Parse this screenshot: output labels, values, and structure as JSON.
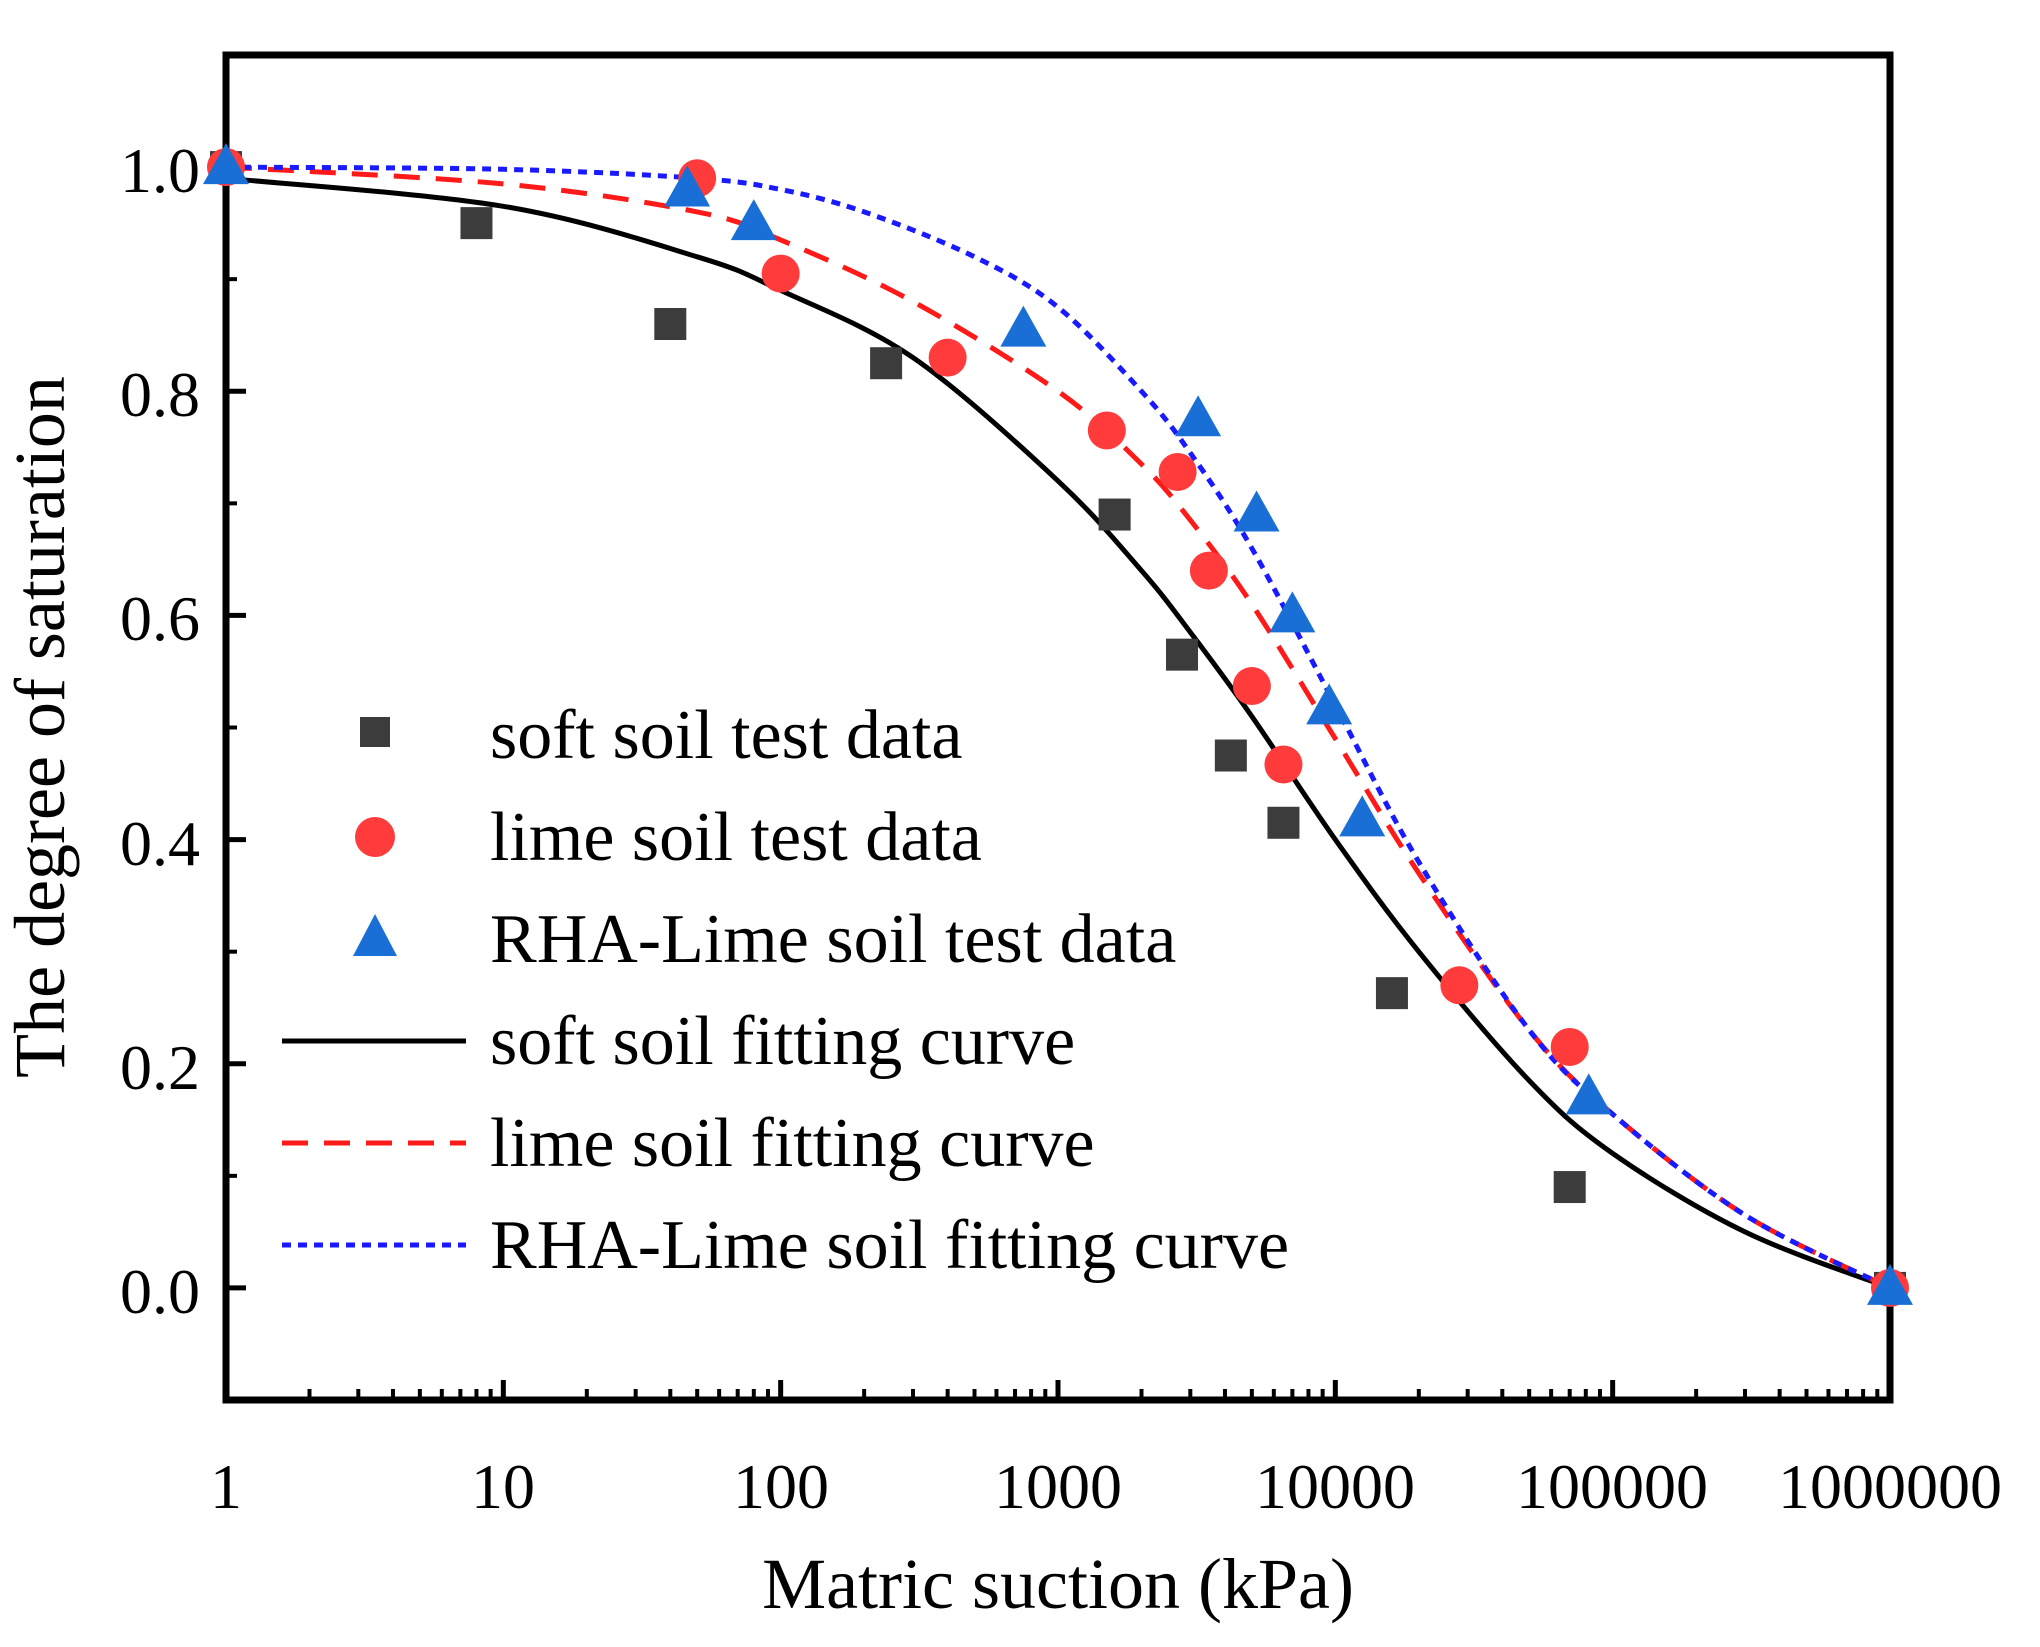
{
  "chart_data": {
    "type": "scatter",
    "title": "",
    "xlabel": "Matric suction (kPa)",
    "ylabel": "The degree of saturation",
    "xscale": "log",
    "xlim": [
      1,
      1000000
    ],
    "ylim": [
      -0.1,
      1.1
    ],
    "x_tick_labels": [
      "1",
      "10",
      "100",
      "1000",
      "10000",
      "100000",
      "1000000"
    ],
    "y_tick_labels": [
      "0.0",
      "0.2",
      "0.4",
      "0.6",
      "0.8",
      "1.0"
    ],
    "legend_position": "center-left",
    "colors": {
      "soft": "#3c3c3c",
      "lime": "#ff3b3b",
      "rha": "#1a6fd6",
      "soft_curve": "#000000",
      "lime_curve": "#ff1a1a",
      "rha_curve": "#1a1aff"
    },
    "series": [
      {
        "name": "soft soil test data",
        "kind": "markers",
        "marker": "square",
        "color": "#3c3c3c",
        "x": [
          1,
          8,
          40,
          240,
          1600,
          2800,
          4200,
          6500,
          16000,
          70000,
          1000000
        ],
        "y": [
          1.0,
          0.95,
          0.86,
          0.825,
          0.69,
          0.565,
          0.475,
          0.415,
          0.263,
          0.09,
          0.0
        ]
      },
      {
        "name": "lime soil test data",
        "kind": "markers",
        "marker": "circle",
        "color": "#ff3b3b",
        "x": [
          1,
          50,
          100,
          400,
          1500,
          2700,
          3500,
          5000,
          6500,
          28000,
          70000,
          1000000
        ],
        "y": [
          1.0,
          0.99,
          0.905,
          0.83,
          0.765,
          0.728,
          0.64,
          0.537,
          0.467,
          0.27,
          0.215,
          0.0
        ]
      },
      {
        "name": "RHA-Lime soil test data",
        "kind": "markers",
        "marker": "triangle",
        "color": "#1a6fd6",
        "x": [
          1,
          46,
          80,
          750,
          3200,
          5200,
          7000,
          9500,
          12500,
          82000,
          1000000
        ],
        "y": [
          1.0,
          0.98,
          0.95,
          0.855,
          0.775,
          0.69,
          0.6,
          0.518,
          0.418,
          0.17,
          0.0
        ]
      },
      {
        "name": "soft soil fitting curve",
        "kind": "line",
        "style": "solid",
        "color": "#000000",
        "x": [
          1,
          10,
          50,
          100,
          300,
          1000,
          2000,
          3000,
          5000,
          10000,
          20000,
          50000,
          100000,
          300000,
          1000000
        ],
        "y": [
          0.99,
          0.965,
          0.92,
          0.89,
          0.83,
          0.72,
          0.64,
          0.585,
          0.51,
          0.4,
          0.3,
          0.185,
          0.12,
          0.05,
          0.0
        ]
      },
      {
        "name": "lime soil fitting curve",
        "kind": "line",
        "style": "dashed",
        "color": "#ff1a1a",
        "x": [
          1,
          10,
          50,
          100,
          300,
          1000,
          2000,
          3000,
          5000,
          10000,
          20000,
          50000,
          100000,
          300000,
          1000000
        ],
        "y": [
          1.0,
          0.985,
          0.96,
          0.935,
          0.88,
          0.8,
          0.735,
          0.685,
          0.61,
          0.49,
          0.37,
          0.23,
          0.155,
          0.065,
          0.0
        ]
      },
      {
        "name": "RHA-Lime soil fitting curve",
        "kind": "line",
        "style": "dotted",
        "color": "#1a1aff",
        "x": [
          1,
          10,
          50,
          100,
          200,
          500,
          1000,
          2000,
          3000,
          5000,
          10000,
          20000,
          50000,
          100000,
          300000,
          1000000
        ],
        "y": [
          1.0,
          0.998,
          0.99,
          0.98,
          0.96,
          0.92,
          0.875,
          0.8,
          0.745,
          0.66,
          0.52,
          0.38,
          0.23,
          0.155,
          0.065,
          0.0
        ]
      }
    ]
  }
}
